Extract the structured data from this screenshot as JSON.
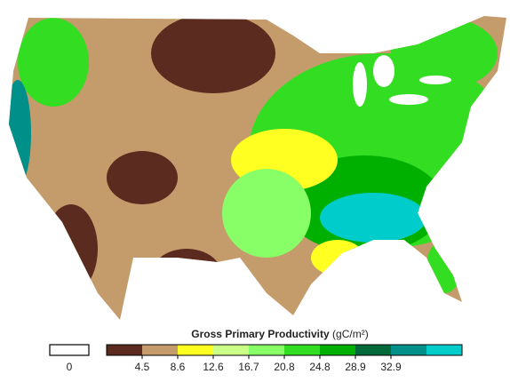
{
  "legend": {
    "title": "Gross Primary Productivity",
    "unit": "(gC/m²)",
    "no_data": {
      "value": 0,
      "color": "#ffffff"
    },
    "colors": [
      "#5a2b1e",
      "#c49c6c",
      "#ffff22",
      "#ccff88",
      "#88ff66",
      "#33dd22",
      "#00b000",
      "#006a3a",
      "#00908a",
      "#00cccc"
    ],
    "ticks": [
      4.5,
      8.6,
      12.6,
      16.7,
      20.8,
      24.8,
      28.9,
      32.9
    ]
  }
}
